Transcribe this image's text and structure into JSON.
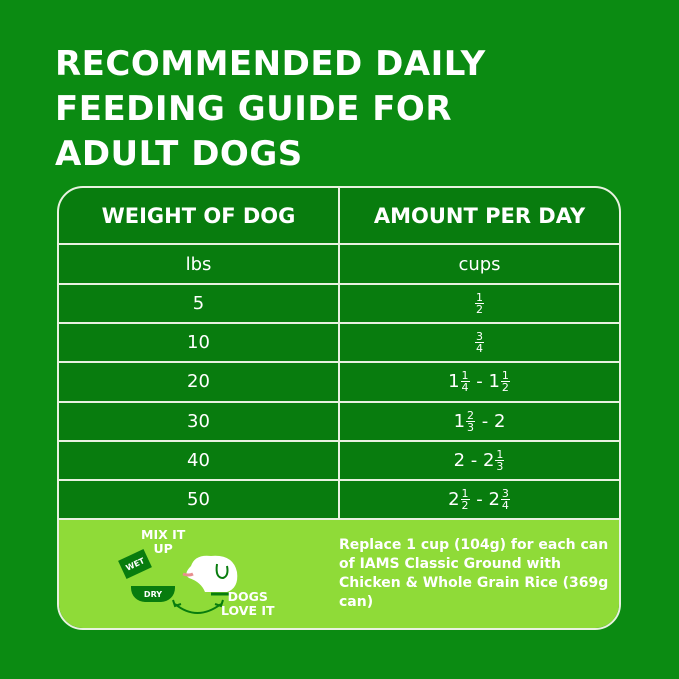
{
  "title_lines": [
    "RECOMMENDED DAILY",
    "FEEDING GUIDE FOR",
    "ADULT DOGS"
  ],
  "table": {
    "headers": [
      "WEIGHT OF DOG",
      "AMOUNT PER DAY"
    ],
    "units": [
      "lbs",
      "cups"
    ],
    "rows": [
      {
        "weight": "5",
        "amount": [
          {
            "n": "1",
            "d": "2"
          }
        ]
      },
      {
        "weight": "10",
        "amount": [
          {
            "n": "3",
            "d": "4"
          }
        ]
      },
      {
        "weight": "20",
        "amount": [
          {
            "t": "1"
          },
          {
            "n": "1",
            "d": "4"
          },
          {
            "t": " - 1"
          },
          {
            "n": "1",
            "d": "2"
          }
        ]
      },
      {
        "weight": "30",
        "amount": [
          {
            "t": "1"
          },
          {
            "n": "2",
            "d": "3"
          },
          {
            "t": " - 2"
          }
        ]
      },
      {
        "weight": "40",
        "amount": [
          {
            "t": "2 - 2"
          },
          {
            "n": "1",
            "d": "3"
          }
        ]
      },
      {
        "weight": "50",
        "amount": [
          {
            "t": "2"
          },
          {
            "n": "1",
            "d": "2"
          },
          {
            "t": " - 2"
          },
          {
            "n": "3",
            "d": "4"
          }
        ]
      }
    ]
  },
  "bottom": {
    "note": "Replace 1 cup (104g) for each can of IAMS Classic Ground with Chicken & Whole Grain Rice (369g can)",
    "mix_line1": "MIX IT",
    "mix_line2": "UP",
    "wet": "WET",
    "dry": "DRY",
    "love_line1": "DOGS",
    "love_line2": "LOVE IT"
  },
  "colors": {
    "background": "#0b8b12",
    "table": "#087c0e",
    "accent": "#8fdb38"
  }
}
